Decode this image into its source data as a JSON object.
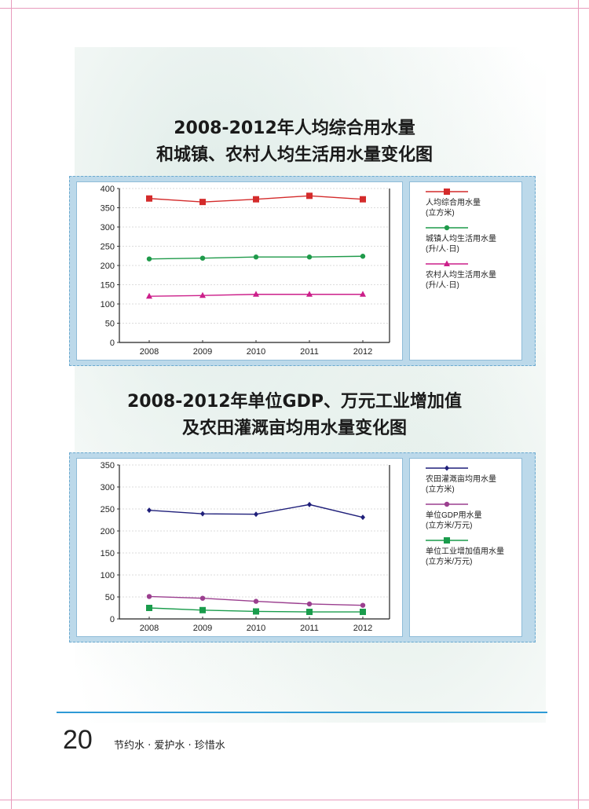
{
  "charts_section_1": {
    "title_line1": "2008-2012年人均综合用水量",
    "title_line2": "和城镇、农村人均生活用水量变化图"
  },
  "charts_section_2": {
    "title_line1": "2008-2012年单位GDP、万元工业增加值",
    "title_line2": "及农田灌溉亩均用水量变化图"
  },
  "footer": {
    "page_number": "20",
    "slogan": "节约水 · 爱护水 · 珍惜水"
  },
  "chart_data": [
    {
      "type": "line",
      "categories": [
        "2008",
        "2009",
        "2010",
        "2011",
        "2012"
      ],
      "ylim": [
        0,
        400
      ],
      "yticks": [
        0,
        50,
        100,
        150,
        200,
        250,
        300,
        350,
        400
      ],
      "grid": true,
      "legend_position": "right",
      "series": [
        {
          "label_line1": "人均综合用水量",
          "label_line2": "(立方米)",
          "color": "#d42b2b",
          "marker": "square",
          "values": [
            374,
            365,
            372,
            381,
            372
          ]
        },
        {
          "label_line1": "城镇人均生活用水量",
          "label_line2": "(升/人·日)",
          "color": "#1f9a4a",
          "marker": "circle",
          "values": [
            217,
            219,
            222,
            222,
            224
          ]
        },
        {
          "label_line1": "农村人均生活用水量",
          "label_line2": "(升/人·日)",
          "color": "#cc1f8a",
          "marker": "triangle",
          "values": [
            120,
            122,
            125,
            125,
            125
          ]
        }
      ]
    },
    {
      "type": "line",
      "categories": [
        "2008",
        "2009",
        "2010",
        "2011",
        "2012"
      ],
      "ylim": [
        0,
        350
      ],
      "yticks": [
        0,
        50,
        100,
        150,
        200,
        250,
        300,
        350
      ],
      "grid": true,
      "legend_position": "right",
      "series": [
        {
          "label_line1": "农田灌溉亩均用水量",
          "label_line2": "(立方米)",
          "color": "#1f1f7a",
          "marker": "diamond",
          "values": [
            247,
            239,
            238,
            260,
            231
          ]
        },
        {
          "label_line1": "单位GDP用水量",
          "label_line2": "(立方米/万元)",
          "color": "#9b3f8f",
          "marker": "circle",
          "values": [
            51,
            47,
            40,
            34,
            31
          ]
        },
        {
          "label_line1": "单位工业增加值用水量",
          "label_line2": "(立方米/万元)",
          "color": "#1a9c4c",
          "marker": "square",
          "values": [
            25,
            20,
            17,
            16,
            16
          ]
        }
      ]
    }
  ]
}
